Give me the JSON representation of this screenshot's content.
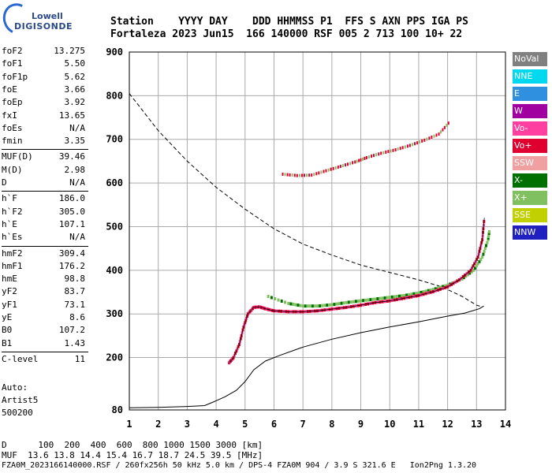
{
  "logo": {
    "line1": "Lowell",
    "line2": "DIGISONDE"
  },
  "header": {
    "line1": "Station    YYYY DAY    DDD HHMMSS P1  FFS S AXN PPS IGA PS",
    "line2": "Fortaleza 2023 Jun15  166 140000 RSF 005 2 713 100 10+ 22"
  },
  "params": [
    {
      "k": "foF2",
      "v": "13.275"
    },
    {
      "k": "foF1",
      "v": "5.50"
    },
    {
      "k": "foF1p",
      "v": "5.62"
    },
    {
      "k": "foE",
      "v": "3.66"
    },
    {
      "k": "foEp",
      "v": "3.92"
    },
    {
      "k": "fxI",
      "v": "13.65"
    },
    {
      "k": "foEs",
      "v": "N/A"
    },
    {
      "k": "fmin",
      "v": "3.35"
    },
    {
      "k": "MUF(D)",
      "v": "39.46"
    },
    {
      "k": "M(D)",
      "v": "2.98"
    },
    {
      "k": "D",
      "v": "N/A"
    },
    {
      "k": "h`F",
      "v": "186.0"
    },
    {
      "k": "h`F2",
      "v": "305.0"
    },
    {
      "k": "h`E",
      "v": "107.1"
    },
    {
      "k": "h`Es",
      "v": "N/A"
    },
    {
      "k": "hmF2",
      "v": "309.4"
    },
    {
      "k": "hmF1",
      "v": "176.2"
    },
    {
      "k": "hmE",
      "v": "98.8"
    },
    {
      "k": "yF2",
      "v": "83.7"
    },
    {
      "k": "yF1",
      "v": "73.1"
    },
    {
      "k": "yE",
      "v": "8.6"
    },
    {
      "k": "B0",
      "v": "107.2"
    },
    {
      "k": "B1",
      "v": "1.43"
    },
    {
      "k": "C-level",
      "v": "11"
    }
  ],
  "auto": {
    "line1": "Auto:",
    "line2": "Artist5",
    "line3": "500200"
  },
  "legend": [
    {
      "label": "NoVal",
      "color": "#808080"
    },
    {
      "label": "NNE",
      "color": "#00d8f0"
    },
    {
      "label": "E",
      "color": "#3090e0"
    },
    {
      "label": "W",
      "color": "#a000a0"
    },
    {
      "label": "Vo-",
      "color": "#ff40a0"
    },
    {
      "label": "Vo+",
      "color": "#e00030"
    },
    {
      "label": "SSW",
      "color": "#f0a0a0"
    },
    {
      "label": "X-",
      "color": "#007000"
    },
    {
      "label": "X+",
      "color": "#80c060"
    },
    {
      "label": "SSE",
      "color": "#c0d000"
    },
    {
      "label": "NNW",
      "color": "#2020c0"
    }
  ],
  "bottom": {
    "line1": "D      100  200  400  600  800 1000 1500 3000 [km]",
    "line2": "MUF  13.6 13.8 14.4 15.4 16.7 18.7 24.5 39.5 [MHz]"
  },
  "footer": "FZA0M_2023166140000.RSF / 260fx256h 50 kHz 5.0 km / DPS-4 FZA0M 904 / 3.9 S 321.6 E   Ion2Png 1.3.20",
  "chart_data": {
    "type": "scatter",
    "xlim": [
      1,
      14
    ],
    "ylim": [
      80,
      900
    ],
    "xticks": [
      1,
      2,
      3,
      4,
      5,
      6,
      7,
      8,
      9,
      10,
      11,
      12,
      13,
      14
    ],
    "yticks": [
      80,
      200,
      300,
      400,
      500,
      600,
      700,
      800,
      900
    ],
    "grid": true,
    "traces": {
      "o_main": [
        [
          4.45,
          188
        ],
        [
          4.6,
          200
        ],
        [
          4.8,
          230
        ],
        [
          4.95,
          270
        ],
        [
          5.1,
          300
        ],
        [
          5.3,
          315
        ],
        [
          5.5,
          316
        ],
        [
          5.7,
          312
        ],
        [
          6.0,
          307
        ],
        [
          6.5,
          305
        ],
        [
          7.0,
          305
        ],
        [
          7.5,
          307
        ],
        [
          8.0,
          311
        ],
        [
          8.5,
          315
        ],
        [
          9.0,
          320
        ],
        [
          9.5,
          326
        ],
        [
          10.0,
          330
        ],
        [
          10.5,
          336
        ],
        [
          11.0,
          342
        ],
        [
          11.5,
          351
        ],
        [
          12.0,
          362
        ],
        [
          12.4,
          378
        ],
        [
          12.8,
          400
        ],
        [
          13.05,
          430
        ],
        [
          13.2,
          470
        ],
        [
          13.27,
          520
        ]
      ],
      "x_ext": [
        [
          5.8,
          340
        ],
        [
          6.5,
          324
        ],
        [
          7.0,
          318
        ],
        [
          7.5,
          318
        ],
        [
          8.0,
          321
        ],
        [
          8.5,
          326
        ],
        [
          9.0,
          330
        ],
        [
          9.5,
          334
        ],
        [
          10.0,
          338
        ],
        [
          10.5,
          342
        ],
        [
          11.0,
          348
        ],
        [
          11.5,
          356
        ],
        [
          12.0,
          366
        ],
        [
          12.5,
          380
        ],
        [
          12.9,
          400
        ],
        [
          13.2,
          430
        ],
        [
          13.4,
          470
        ],
        [
          13.45,
          492
        ]
      ],
      "multi": [
        [
          6.3,
          620
        ],
        [
          6.8,
          617
        ],
        [
          7.3,
          618
        ],
        [
          7.8,
          628
        ],
        [
          8.3,
          638
        ],
        [
          8.8,
          648
        ],
        [
          9.2,
          658
        ],
        [
          9.7,
          668
        ],
        [
          10.2,
          676
        ],
        [
          10.7,
          686
        ],
        [
          11.2,
          698
        ],
        [
          11.7,
          712
        ],
        [
          12.1,
          742
        ]
      ],
      "true_height": [
        [
          1,
          85
        ],
        [
          2,
          86
        ],
        [
          3,
          88
        ],
        [
          3.6,
          90
        ],
        [
          3.9,
          98
        ],
        [
          4.3,
          110
        ],
        [
          4.7,
          125
        ],
        [
          5.0,
          145
        ],
        [
          5.3,
          172
        ],
        [
          5.7,
          192
        ],
        [
          6.2,
          205
        ],
        [
          7.0,
          224
        ],
        [
          8.0,
          242
        ],
        [
          9.0,
          257
        ],
        [
          10.0,
          270
        ],
        [
          11.0,
          282
        ],
        [
          12.0,
          295
        ],
        [
          12.6,
          302
        ],
        [
          13.1,
          312
        ],
        [
          13.25,
          318
        ]
      ],
      "model_dashed": [
        [
          1,
          805
        ],
        [
          2,
          720
        ],
        [
          3,
          650
        ],
        [
          4,
          590
        ],
        [
          5,
          540
        ],
        [
          6,
          495
        ],
        [
          7,
          460
        ],
        [
          8,
          435
        ],
        [
          9,
          412
        ],
        [
          10,
          395
        ],
        [
          11,
          378
        ],
        [
          11.8,
          362
        ],
        [
          12.5,
          340
        ],
        [
          13.0,
          320
        ],
        [
          13.2,
          316
        ]
      ]
    }
  }
}
